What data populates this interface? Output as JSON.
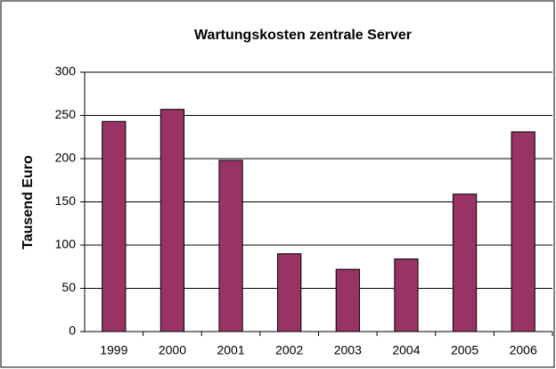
{
  "chart_data": {
    "type": "bar",
    "title": "Wartungskosten zentrale Server",
    "y_label": "Tausend Euro",
    "categories": [
      "1999",
      "2000",
      "2001",
      "2002",
      "2003",
      "2004",
      "2005",
      "2006"
    ],
    "values": [
      243,
      257,
      198,
      90,
      72,
      84,
      159,
      231
    ],
    "color": "#993366",
    "ylim": [
      0,
      300
    ],
    "yticks": [
      0,
      50,
      100,
      150,
      200,
      250,
      300
    ],
    "grid": true
  }
}
